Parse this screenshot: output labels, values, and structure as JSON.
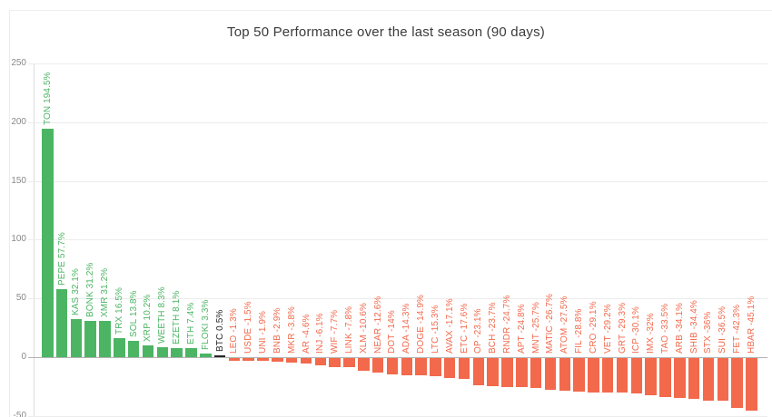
{
  "title": "Top 50 Performance over the last season (90 days)",
  "chart_data": {
    "type": "bar",
    "title": "Top 50 Performance over the last season (90 days)",
    "xlabel": "",
    "ylabel": "",
    "unit": "%",
    "ylim": [
      -50,
      250
    ],
    "yticks": [
      250,
      200,
      150,
      100,
      50,
      0,
      -50
    ],
    "grid": true,
    "legend": false,
    "benchmark_symbol": "BTC",
    "bar_colors": {
      "positive": "#4cb564",
      "negative": "#f2694c",
      "benchmark": "#262626"
    },
    "categories": [
      "TON",
      "PEPE",
      "KAS",
      "BONK",
      "XMR",
      "TRX",
      "SOL",
      "XRP",
      "WEETH",
      "EZETH",
      "ETH",
      "FLOKI",
      "BTC",
      "LEO",
      "USDE",
      "UNI",
      "BNB",
      "MKR",
      "AR",
      "INJ",
      "WIF",
      "LINK",
      "XLM",
      "NEAR",
      "DOT",
      "ADA",
      "DOGE",
      "LTC",
      "AVAX",
      "ETC",
      "OP",
      "BCH",
      "RNDR",
      "APT",
      "MNT",
      "MATIC",
      "ATOM",
      "FIL",
      "CRO",
      "VET",
      "GRT",
      "ICP",
      "IMX",
      "TAO",
      "ARB",
      "SHIB",
      "STX",
      "SUI",
      "FET",
      "HBAR"
    ],
    "values": [
      194.5,
      57.7,
      32.1,
      31.2,
      31.2,
      16.5,
      13.8,
      10.2,
      8.3,
      8.1,
      7.4,
      3.3,
      0.5,
      -1.3,
      -1.5,
      -1.9,
      -2.9,
      -3.8,
      -4.6,
      -6.1,
      -7.7,
      -7.8,
      -10.6,
      -12.6,
      -14,
      -14.3,
      -14.9,
      -15.3,
      -17.1,
      -17.6,
      -23.1,
      -23.7,
      -24.7,
      -24.8,
      -25.7,
      -26.7,
      -27.5,
      -28.8,
      -29.1,
      -29.2,
      -29.3,
      -30.1,
      -32,
      -33.5,
      -34.1,
      -34.4,
      -36,
      -36.5,
      -42.3,
      -45.1
    ]
  }
}
